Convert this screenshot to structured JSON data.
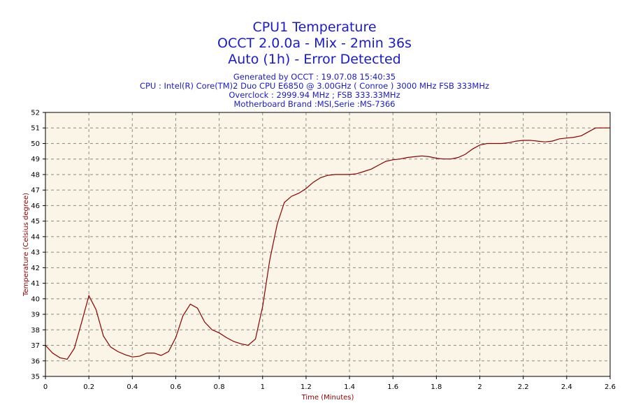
{
  "chart_data": {
    "type": "line",
    "title_lines": [
      "CPU1 Temperature",
      "OCCT 2.0.0a - Mix - 2min 36s",
      "Auto (1h) - Error Detected"
    ],
    "info_lines": [
      "Generated by OCCT : 19.07.08 15:40:35",
      "CPU : Intel(R) Core(TM)2 Duo CPU E6850 @ 3.00GHz ( Conroe ) 3000 MHz FSB 333MHz",
      "Overclock : 2999.94 MHz ; FSB 333.33MHz",
      "Motherboard Brand :MSI,Serie :MS-7366"
    ],
    "xlabel": "Time (Minutes)",
    "ylabel": "Temperature (Celsius degree)",
    "xlim": [
      0,
      2.6
    ],
    "ylim": [
      35,
      52
    ],
    "x_ticks": [
      "0",
      "0.2",
      "0.4",
      "0.6",
      "0.8",
      "1",
      "1.2",
      "1.4",
      "1.6",
      "1.8",
      "2",
      "2.2",
      "2.4",
      "2.6"
    ],
    "y_ticks": [
      "35",
      "36",
      "37",
      "38",
      "39",
      "40",
      "41",
      "42",
      "43",
      "44",
      "45",
      "46",
      "47",
      "48",
      "49",
      "50",
      "51",
      "52"
    ],
    "grid": true,
    "colors": {
      "line": "#8b0000",
      "plot_background": "#faf5e6",
      "text": "#1a1acc",
      "axis_label": "#8b0000"
    },
    "series": [
      {
        "x": [
          0,
          0.033,
          0.067,
          0.1,
          0.133,
          0.167,
          0.2,
          0.233,
          0.267,
          0.3,
          0.333,
          0.367,
          0.4,
          0.433,
          0.467,
          0.5,
          0.533,
          0.567,
          0.6,
          0.633,
          0.667,
          0.7,
          0.733,
          0.767,
          0.8,
          0.833,
          0.867,
          0.9,
          0.933,
          0.967,
          1.0,
          1.033,
          1.067,
          1.1,
          1.133,
          1.167,
          1.2,
          1.233,
          1.267,
          1.3,
          1.333,
          1.367,
          1.4,
          1.433,
          1.467,
          1.5,
          1.533,
          1.567,
          1.6,
          1.633,
          1.667,
          1.7,
          1.733,
          1.767,
          1.8,
          1.833,
          1.867,
          1.9,
          1.933,
          1.967,
          2.0,
          2.033,
          2.067,
          2.1,
          2.133,
          2.167,
          2.2,
          2.233,
          2.267,
          2.3,
          2.333,
          2.367,
          2.4,
          2.433,
          2.467,
          2.5,
          2.533,
          2.567,
          2.6
        ],
        "values": [
          37.0,
          36.5,
          36.2,
          36.1,
          36.8,
          38.5,
          40.2,
          39.3,
          37.6,
          36.9,
          36.6,
          36.4,
          36.25,
          36.3,
          36.5,
          36.5,
          36.35,
          36.6,
          37.5,
          38.9,
          39.65,
          39.4,
          38.5,
          38.0,
          37.8,
          37.5,
          37.25,
          37.1,
          37.0,
          37.4,
          39.5,
          42.5,
          44.8,
          46.2,
          46.6,
          46.8,
          47.1,
          47.5,
          47.8,
          47.95,
          48.0,
          48.0,
          48.0,
          48.05,
          48.2,
          48.35,
          48.6,
          48.85,
          48.95,
          49.0,
          49.1,
          49.15,
          49.2,
          49.15,
          49.05,
          49.0,
          49.0,
          49.1,
          49.3,
          49.65,
          49.9,
          50.0,
          50.0,
          50.0,
          50.05,
          50.15,
          50.2,
          50.2,
          50.15,
          50.1,
          50.15,
          50.3,
          50.35,
          50.4,
          50.5,
          50.75,
          51.0,
          51.0,
          51.0
        ]
      }
    ]
  }
}
